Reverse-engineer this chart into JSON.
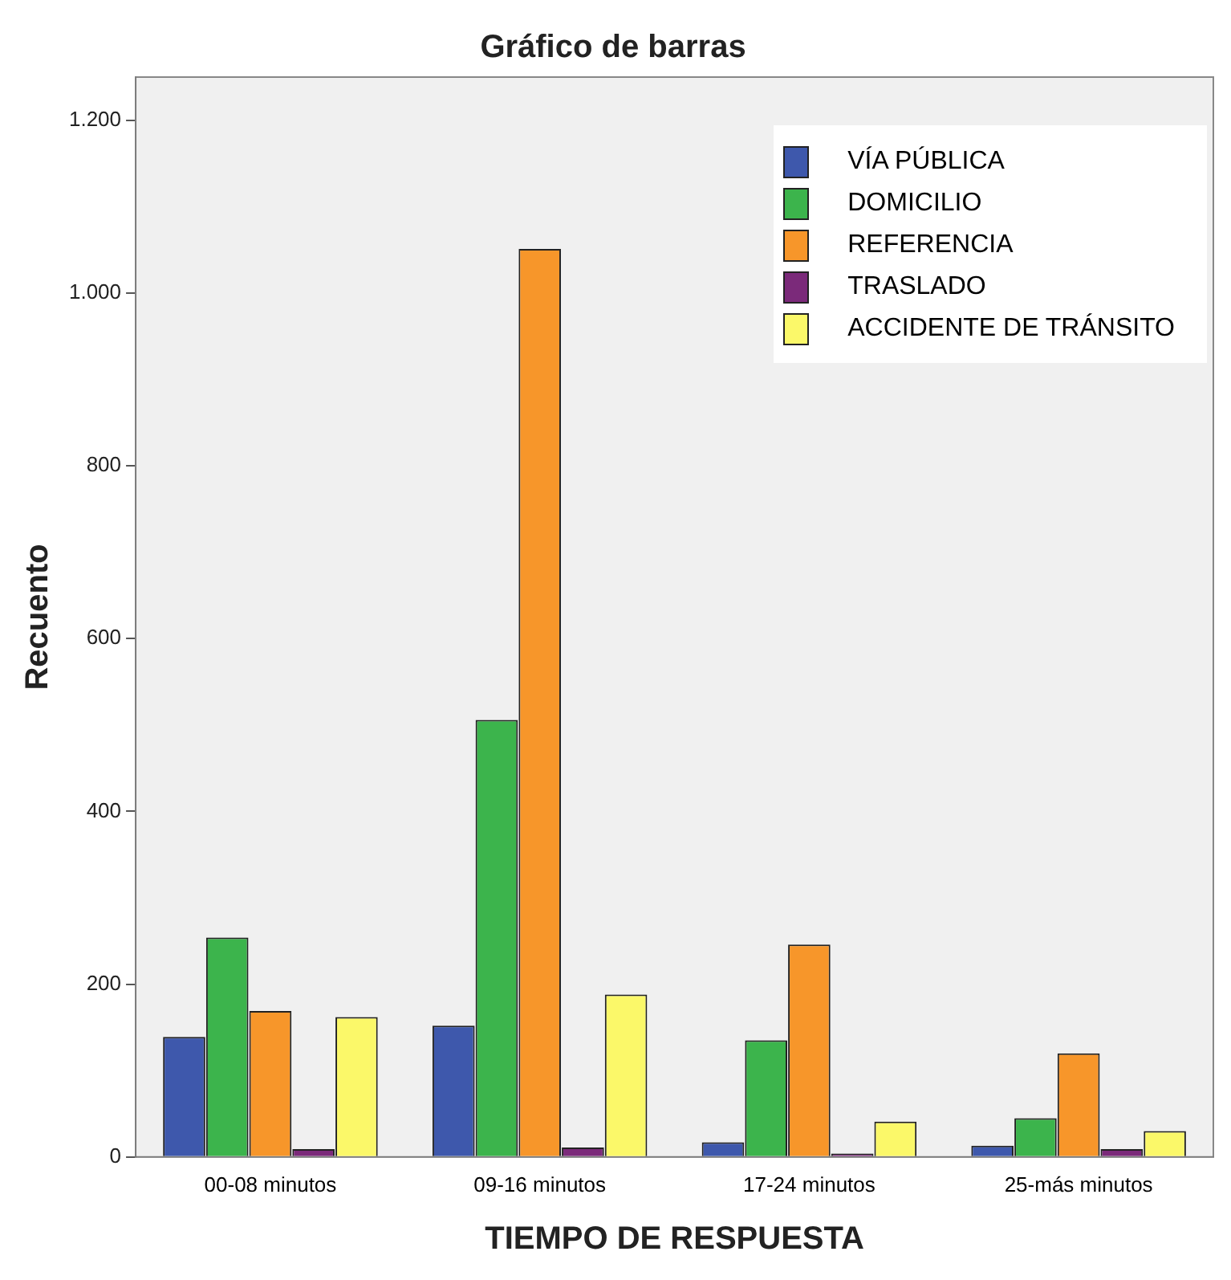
{
  "chart_data": {
    "type": "bar",
    "title": "Gráfico de barras",
    "xlabel": "TIEMPO DE RESPUESTA",
    "ylabel": "Recuento",
    "categories": [
      "00-08 minutos",
      "09-16 minutos",
      "17-24 minutos",
      "25-más minutos"
    ],
    "series": [
      {
        "name": "VÍA PÚBLICA",
        "color": "#3e58ac",
        "values": [
          139,
          152,
          17,
          13
        ]
      },
      {
        "name": "DOMICILIO",
        "color": "#3cb44c",
        "values": [
          254,
          506,
          135,
          45
        ]
      },
      {
        "name": "REFERENCIA",
        "color": "#f7962a",
        "values": [
          169,
          1051,
          246,
          120
        ]
      },
      {
        "name": "TRASLADO",
        "color": "#7b2a7a",
        "values": [
          9,
          11,
          4,
          9
        ]
      },
      {
        "name": "ACCIDENTE DE TRÁNSITO",
        "color": "#fbf869",
        "values": [
          162,
          188,
          41,
          30
        ]
      }
    ],
    "ylim": [
      0,
      1250
    ],
    "yticks": [
      0,
      200,
      400,
      600,
      800,
      {
        "value": 1000,
        "label": "1.000"
      },
      {
        "value": 1200,
        "label": "1.200"
      }
    ],
    "grid": false,
    "legend": "top right"
  }
}
